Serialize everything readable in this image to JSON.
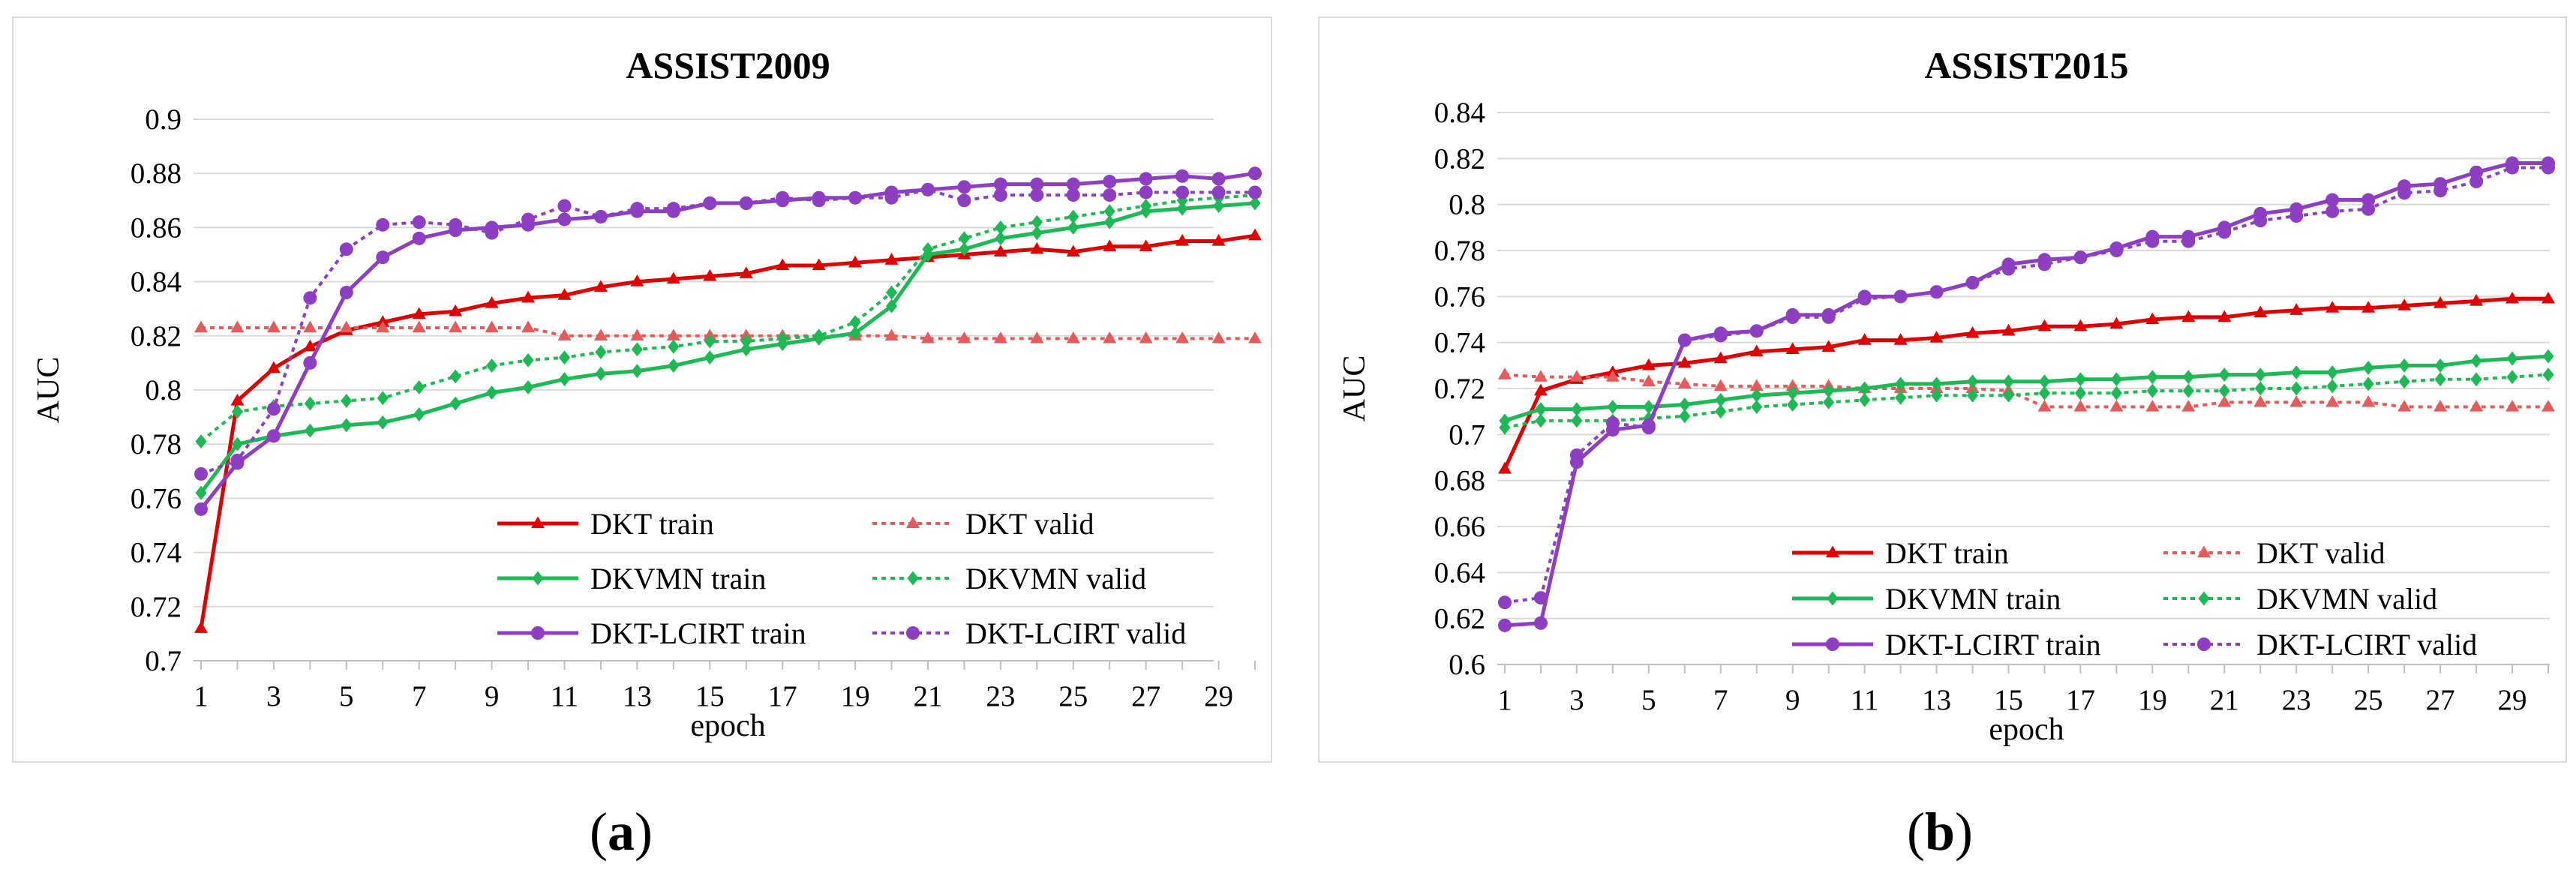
{
  "captions": [
    {
      "open": "(",
      "letter": "a",
      "close": ")"
    },
    {
      "open": "(",
      "letter": "b",
      "close": ")"
    }
  ],
  "series_styles": [
    {
      "key": "dkt_train",
      "color": "#e00000",
      "dashed": false,
      "marker": "triangle"
    },
    {
      "key": "dkt_valid",
      "color": "#e55a5a",
      "dashed": true,
      "marker": "triangle"
    },
    {
      "key": "dkvmn_train",
      "color": "#1db954",
      "dashed": false,
      "marker": "diamond"
    },
    {
      "key": "dkvmn_valid",
      "color": "#1db954",
      "dashed": true,
      "marker": "diamond"
    },
    {
      "key": "lcirt_train",
      "color": "#8e3ec2",
      "dashed": false,
      "marker": "circle"
    },
    {
      "key": "lcirt_valid",
      "color": "#8e3ec2",
      "dashed": true,
      "marker": "circle"
    }
  ],
  "chart_data": [
    {
      "type": "line",
      "title": "ASSIST2009",
      "xlabel": "epoch",
      "ylabel": "AUC",
      "ylim": [
        0.7,
        0.9
      ],
      "yticks": [
        "0.7",
        "0.72",
        "0.74",
        "0.76",
        "0.78",
        "0.8",
        "0.82",
        "0.84",
        "0.86",
        "0.88",
        "0.9"
      ],
      "xticks": [
        "1",
        "3",
        "5",
        "7",
        "9",
        "11",
        "13",
        "15",
        "17",
        "19",
        "21",
        "23",
        "25",
        "27",
        "29"
      ],
      "legend_position": "bottom-right",
      "x": [
        1,
        2,
        3,
        4,
        5,
        6,
        7,
        8,
        9,
        10,
        11,
        12,
        13,
        14,
        15,
        16,
        17,
        18,
        19,
        20,
        21,
        22,
        23,
        24,
        25,
        26,
        27,
        28,
        29,
        30
      ],
      "series": [
        {
          "name": "DKT train",
          "values": [
            0.712,
            0.796,
            0.808,
            0.816,
            0.822,
            0.825,
            0.828,
            0.829,
            0.832,
            0.834,
            0.835,
            0.838,
            0.84,
            0.841,
            0.842,
            0.843,
            0.846,
            0.846,
            0.847,
            0.848,
            0.849,
            0.85,
            0.851,
            0.852,
            0.851,
            0.853,
            0.853,
            0.855,
            0.855,
            0.857
          ]
        },
        {
          "name": "DKT valid",
          "values": [
            0.823,
            0.823,
            0.823,
            0.823,
            0.823,
            0.823,
            0.823,
            0.823,
            0.823,
            0.823,
            0.82,
            0.82,
            0.82,
            0.82,
            0.82,
            0.82,
            0.82,
            0.82,
            0.82,
            0.82,
            0.819,
            0.819,
            0.819,
            0.819,
            0.819,
            0.819,
            0.819,
            0.819,
            0.819,
            0.819
          ]
        },
        {
          "name": "DKVMN train",
          "values": [
            0.762,
            0.78,
            0.783,
            0.785,
            0.787,
            0.788,
            0.791,
            0.795,
            0.799,
            0.801,
            0.804,
            0.806,
            0.807,
            0.809,
            0.812,
            0.815,
            0.817,
            0.819,
            0.821,
            0.831,
            0.85,
            0.852,
            0.856,
            0.858,
            0.86,
            0.862,
            0.866,
            0.867,
            0.868,
            0.869
          ]
        },
        {
          "name": "DKVMN valid",
          "values": [
            0.781,
            0.792,
            0.794,
            0.795,
            0.796,
            0.797,
            0.801,
            0.805,
            0.809,
            0.811,
            0.812,
            0.814,
            0.815,
            0.816,
            0.818,
            0.818,
            0.819,
            0.82,
            0.825,
            0.836,
            0.852,
            0.856,
            0.86,
            0.862,
            0.864,
            0.866,
            0.868,
            0.87,
            0.871,
            0.872
          ]
        },
        {
          "name": "DKT-LCIRT train",
          "values": [
            0.756,
            0.773,
            0.783,
            0.81,
            0.836,
            0.849,
            0.856,
            0.859,
            0.86,
            0.861,
            0.863,
            0.864,
            0.866,
            0.866,
            0.869,
            0.869,
            0.87,
            0.871,
            0.871,
            0.873,
            0.874,
            0.875,
            0.876,
            0.876,
            0.876,
            0.877,
            0.878,
            0.879,
            0.878,
            0.88
          ]
        },
        {
          "name": "DKT-LCIRT valid",
          "values": [
            0.769,
            0.774,
            0.793,
            0.834,
            0.852,
            0.861,
            0.862,
            0.861,
            0.858,
            0.863,
            0.868,
            0.864,
            0.867,
            0.867,
            0.869,
            0.869,
            0.871,
            0.87,
            0.871,
            0.871,
            0.874,
            0.87,
            0.872,
            0.872,
            0.872,
            0.872,
            0.873,
            0.873,
            0.873,
            0.873
          ]
        }
      ]
    },
    {
      "type": "line",
      "title": "ASSIST2015",
      "xlabel": "epoch",
      "ylabel": "AUC",
      "ylim": [
        0.6,
        0.84
      ],
      "yticks": [
        "0.6",
        "0.62",
        "0.64",
        "0.66",
        "0.68",
        "0.7",
        "0.72",
        "0.74",
        "0.76",
        "0.78",
        "0.8",
        "0.82",
        "0.84"
      ],
      "xticks": [
        "1",
        "3",
        "5",
        "7",
        "9",
        "11",
        "13",
        "15",
        "17",
        "19",
        "21",
        "23",
        "25",
        "27",
        "29"
      ],
      "legend_position": "bottom-right",
      "x": [
        1,
        2,
        3,
        4,
        5,
        6,
        7,
        8,
        9,
        10,
        11,
        12,
        13,
        14,
        15,
        16,
        17,
        18,
        19,
        20,
        21,
        22,
        23,
        24,
        25,
        26,
        27,
        28,
        29,
        30
      ],
      "series": [
        {
          "name": "DKT train",
          "values": [
            0.685,
            0.719,
            0.724,
            0.727,
            0.73,
            0.731,
            0.733,
            0.736,
            0.737,
            0.738,
            0.741,
            0.741,
            0.742,
            0.744,
            0.745,
            0.747,
            0.747,
            0.748,
            0.75,
            0.751,
            0.751,
            0.753,
            0.754,
            0.755,
            0.755,
            0.756,
            0.757,
            0.758,
            0.759,
            0.759
          ]
        },
        {
          "name": "DKT valid",
          "values": [
            0.726,
            0.725,
            0.725,
            0.725,
            0.723,
            0.722,
            0.721,
            0.721,
            0.721,
            0.721,
            0.72,
            0.72,
            0.72,
            0.72,
            0.719,
            0.712,
            0.712,
            0.712,
            0.712,
            0.712,
            0.714,
            0.714,
            0.714,
            0.714,
            0.714,
            0.712,
            0.712,
            0.712,
            0.712,
            0.712
          ]
        },
        {
          "name": "DKVMN train",
          "values": [
            0.706,
            0.711,
            0.711,
            0.712,
            0.712,
            0.713,
            0.715,
            0.717,
            0.718,
            0.719,
            0.72,
            0.722,
            0.722,
            0.723,
            0.723,
            0.723,
            0.724,
            0.724,
            0.725,
            0.725,
            0.726,
            0.726,
            0.727,
            0.727,
            0.729,
            0.73,
            0.73,
            0.732,
            0.733,
            0.734
          ]
        },
        {
          "name": "DKVMN valid",
          "values": [
            0.703,
            0.706,
            0.706,
            0.706,
            0.707,
            0.708,
            0.71,
            0.712,
            0.713,
            0.714,
            0.715,
            0.716,
            0.717,
            0.717,
            0.717,
            0.718,
            0.718,
            0.718,
            0.719,
            0.719,
            0.719,
            0.72,
            0.72,
            0.721,
            0.722,
            0.723,
            0.724,
            0.724,
            0.725,
            0.726
          ]
        },
        {
          "name": "DKT-LCIRT train",
          "values": [
            0.617,
            0.618,
            0.688,
            0.702,
            0.704,
            0.741,
            0.744,
            0.745,
            0.752,
            0.752,
            0.76,
            0.76,
            0.762,
            0.766,
            0.774,
            0.776,
            0.777,
            0.781,
            0.786,
            0.786,
            0.79,
            0.796,
            0.798,
            0.802,
            0.802,
            0.808,
            0.809,
            0.814,
            0.818,
            0.818
          ]
        },
        {
          "name": "DKT-LCIRT valid",
          "values": [
            0.627,
            0.629,
            0.691,
            0.705,
            0.703,
            0.741,
            0.743,
            0.745,
            0.751,
            0.751,
            0.759,
            0.76,
            0.762,
            0.766,
            0.772,
            0.774,
            0.777,
            0.78,
            0.784,
            0.784,
            0.788,
            0.793,
            0.795,
            0.797,
            0.798,
            0.805,
            0.806,
            0.81,
            0.816,
            0.816
          ]
        }
      ]
    }
  ]
}
